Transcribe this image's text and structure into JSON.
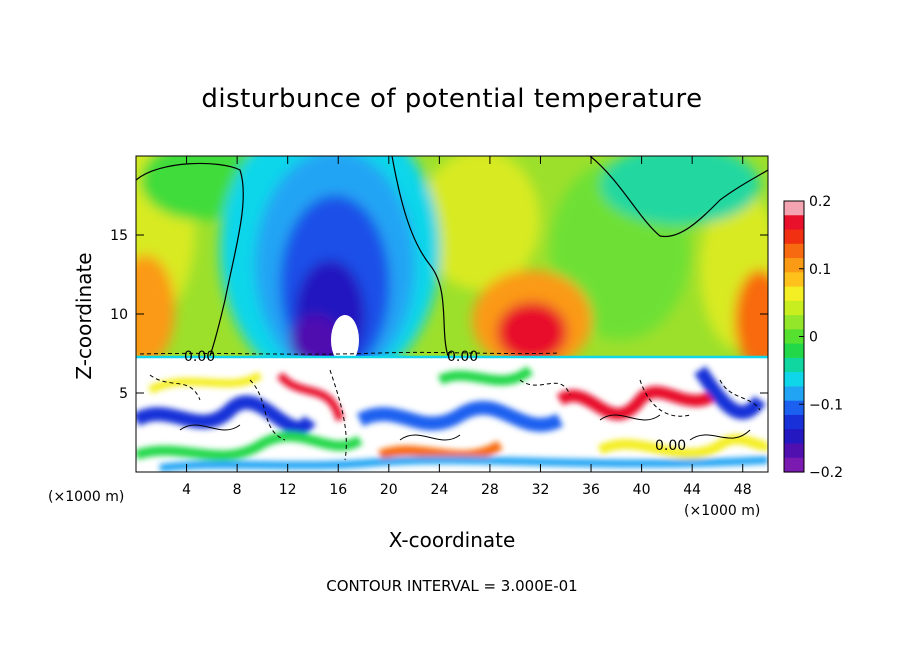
{
  "title": "disturbunce of potential temperature",
  "footer": {
    "contour_interval": "CONTOUR INTERVAL = 3.000E-01"
  },
  "chart_data": {
    "type": "heatmap",
    "title": "disturbunce of potential temperature",
    "xlabel": "X-coordinate",
    "ylabel": "Z-coordinate",
    "x_unit_label": "(×1000 m)",
    "y_unit_label": "(×1000 m)",
    "xlim": [
      0,
      50
    ],
    "ylim": [
      0,
      20
    ],
    "x_ticks": [
      4,
      8,
      12,
      16,
      20,
      24,
      28,
      32,
      36,
      40,
      44,
      48
    ],
    "y_ticks": [
      5,
      10,
      15
    ],
    "colorbar": {
      "range": [
        -0.2,
        0.2
      ],
      "tick_values": [
        0.2,
        0.1,
        0,
        -0.1,
        -0.2
      ],
      "tick_labels": [
        "0.2",
        "0.1",
        "0",
        "−0.1",
        "−0.2"
      ],
      "colors": [
        "#f4a3b0",
        "#e8102a",
        "#f03010",
        "#f86a10",
        "#fb9a14",
        "#ffc21c",
        "#f4ee24",
        "#c8ee20",
        "#94e62a",
        "#56e030",
        "#22d848",
        "#10d6a0",
        "#10d6ea",
        "#22a4f4",
        "#1c60f0",
        "#1830d8",
        "#2418c0",
        "#5010b0",
        "#7a1ab0"
      ]
    },
    "contour_labels": [
      "0.00",
      "0.00",
      "0.00"
    ],
    "contour_interval": 0.3,
    "features": [
      {
        "name": "negative anomaly column",
        "x_center": 16,
        "z_range": [
          7.5,
          19
        ],
        "value": -0.2
      },
      {
        "name": "positive anomaly",
        "x_center": 32,
        "z_range": [
          7.5,
          12
        ],
        "value": 0.15
      },
      {
        "name": "positive anomaly left edge",
        "x_center": 0.5,
        "z_range": [
          7.5,
          14
        ],
        "value": 0.12
      },
      {
        "name": "positive anomaly right edge",
        "x_center": 49.5,
        "z_range": [
          7.5,
          15
        ],
        "value": 0.12
      },
      {
        "name": "turbulent boundary layer",
        "z_range": [
          0,
          7.3
        ]
      }
    ]
  }
}
